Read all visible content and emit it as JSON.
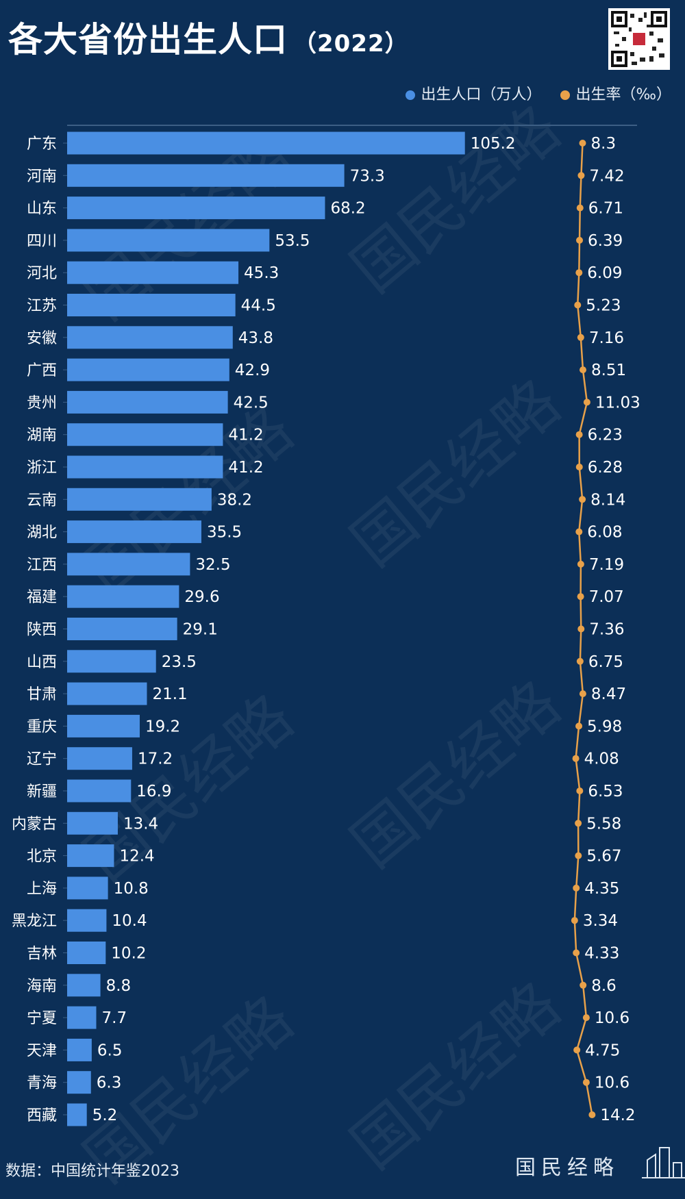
{
  "title": "各大省份出生人口",
  "title_year": "（2022）",
  "legend": [
    {
      "label": "出生人口（万人）",
      "color": "#4a8fe3"
    },
    {
      "label": "出生率（‰）",
      "color": "#e8a14a"
    }
  ],
  "source": "数据：中国统计年鉴2023",
  "logo_text": "国民经略",
  "watermark": "国民经略",
  "chart_data": {
    "type": "bar",
    "orientation": "horizontal",
    "categories": [
      "广东",
      "河南",
      "山东",
      "四川",
      "河北",
      "江苏",
      "安徽",
      "广西",
      "贵州",
      "湖南",
      "浙江",
      "云南",
      "湖北",
      "江西",
      "福建",
      "陕西",
      "山西",
      "甘肃",
      "重庆",
      "辽宁",
      "新疆",
      "内蒙古",
      "北京",
      "上海",
      "黑龙江",
      "吉林",
      "海南",
      "宁夏",
      "天津",
      "青海",
      "西藏"
    ],
    "series": [
      {
        "name": "出生人口（万人）",
        "type": "bar",
        "color": "#4a8fe3",
        "values": [
          105.2,
          73.3,
          68.2,
          53.5,
          45.3,
          44.5,
          43.8,
          42.9,
          42.5,
          41.2,
          41.2,
          38.2,
          35.5,
          32.5,
          29.6,
          29.1,
          23.5,
          21.1,
          19.2,
          17.2,
          16.9,
          13.4,
          12.4,
          10.8,
          10.4,
          10.2,
          8.8,
          7.7,
          6.5,
          6.3,
          5.2
        ],
        "labels": [
          "105.2",
          "73.3",
          "68.2",
          "53.5",
          "45.3",
          "44.5",
          "43.8",
          "42.9",
          "42.5",
          "41.2",
          "41.2",
          "38.2",
          "35.5",
          "32.5",
          "29.6",
          "29.1",
          "23.5",
          "21.1",
          "19.2",
          "17.2",
          "16.9",
          "13.4",
          "12.4",
          "10.8",
          "10.4",
          "10.2",
          "8.8",
          "7.7",
          "6.5",
          "6.3",
          "5.2"
        ]
      },
      {
        "name": "出生率（‰）",
        "type": "line",
        "color": "#e8a14a",
        "values": [
          8.3,
          7.42,
          6.71,
          6.39,
          6.09,
          5.23,
          7.16,
          8.51,
          11.03,
          6.23,
          6.28,
          8.14,
          6.08,
          7.19,
          7.07,
          7.36,
          6.75,
          8.47,
          5.98,
          4.08,
          6.53,
          5.58,
          5.67,
          4.35,
          3.34,
          4.33,
          8.6,
          10.6,
          4.75,
          10.6,
          14.2
        ],
        "labels": [
          "8.3",
          "7.42",
          "6.71",
          "6.39",
          "6.09",
          "5.23",
          "7.16",
          "8.51",
          "11.03",
          "6.23",
          "6.28",
          "8.14",
          "6.08",
          "7.19",
          "7.07",
          "7.36",
          "6.75",
          "8.47",
          "5.98",
          "4.08",
          "6.53",
          "5.58",
          "5.67",
          "4.35",
          "3.34",
          "4.33",
          "8.6",
          "10.6",
          "4.75",
          "10.6",
          "14.2"
        ]
      }
    ],
    "grid": false,
    "legend_position": "top-right"
  }
}
